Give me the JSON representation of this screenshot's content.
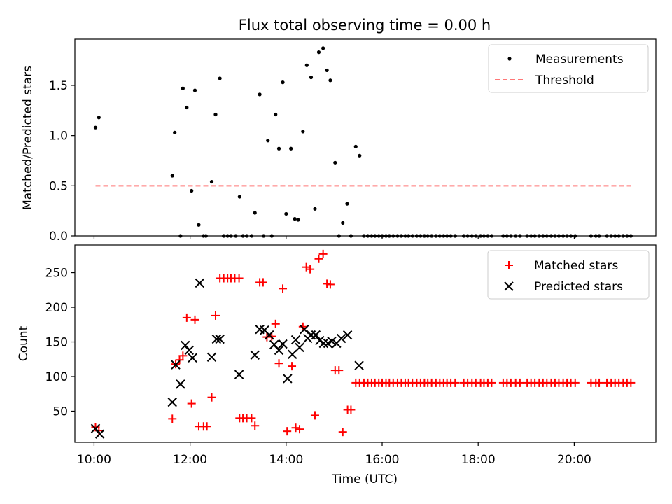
{
  "figure": {
    "title": "Flux total observing time = 0.00 h"
  },
  "chart_data": [
    {
      "type": "scatter",
      "panel": "top",
      "xlabel": "",
      "ylabel": "Matched/Predicted stars",
      "x_axis": "time (hours UTC)",
      "xlim": [
        9.6,
        21.7
      ],
      "ylim": [
        0,
        1.96
      ],
      "yticks": [
        0.0,
        0.5,
        1.0,
        1.5
      ],
      "ytick_labels": [
        "0.0",
        "0.5",
        "1.0",
        "1.5"
      ],
      "grid": false,
      "legend": "upper right",
      "legend_entries": [
        "Measurements",
        "Threshold"
      ],
      "threshold": {
        "name": "Threshold",
        "value": 0.5,
        "x_range": [
          10.03,
          21.18
        ],
        "color": "#ff7777",
        "style": "dashed"
      },
      "series": [
        {
          "name": "Measurements",
          "marker": "dot",
          "color": "#000000",
          "points": [
            [
              10.03,
              1.08
            ],
            [
              10.1,
              1.18
            ],
            [
              11.63,
              0.6
            ],
            [
              11.68,
              1.03
            ],
            [
              11.8,
              0.0
            ],
            [
              11.85,
              1.47
            ],
            [
              11.93,
              1.28
            ],
            [
              12.03,
              0.45
            ],
            [
              12.1,
              1.45
            ],
            [
              12.18,
              0.11
            ],
            [
              12.28,
              0.0
            ],
            [
              12.33,
              0.0
            ],
            [
              12.45,
              0.54
            ],
            [
              12.53,
              1.21
            ],
            [
              12.62,
              1.57
            ],
            [
              12.7,
              0.0
            ],
            [
              12.78,
              0.0
            ],
            [
              12.85,
              0.0
            ],
            [
              12.95,
              0.0
            ],
            [
              13.03,
              0.39
            ],
            [
              13.1,
              0.0
            ],
            [
              13.18,
              0.0
            ],
            [
              13.28,
              0.0
            ],
            [
              13.35,
              0.23
            ],
            [
              13.45,
              1.41
            ],
            [
              13.53,
              0.0
            ],
            [
              13.62,
              0.95
            ],
            [
              13.7,
              0.0
            ],
            [
              13.78,
              1.21
            ],
            [
              13.85,
              0.87
            ],
            [
              13.93,
              1.53
            ],
            [
              14.0,
              0.22
            ],
            [
              14.1,
              0.87
            ],
            [
              14.18,
              0.17
            ],
            [
              14.25,
              0.16
            ],
            [
              14.35,
              1.04
            ],
            [
              14.43,
              1.7
            ],
            [
              14.52,
              1.58
            ],
            [
              14.6,
              0.27
            ],
            [
              14.68,
              1.83
            ],
            [
              14.77,
              1.87
            ],
            [
              14.85,
              1.65
            ],
            [
              14.92,
              1.55
            ],
            [
              15.02,
              0.73
            ],
            [
              15.1,
              0.0
            ],
            [
              15.18,
              0.13
            ],
            [
              15.27,
              0.32
            ],
            [
              15.35,
              0.0
            ],
            [
              15.45,
              0.89
            ],
            [
              15.53,
              0.8
            ],
            [
              15.62,
              0.0
            ],
            [
              15.7,
              0.0
            ],
            [
              15.78,
              0.0
            ],
            [
              15.85,
              0.0
            ],
            [
              15.93,
              0.0
            ],
            [
              16.0,
              0.0
            ],
            [
              16.08,
              0.0
            ],
            [
              16.15,
              0.0
            ],
            [
              16.23,
              0.0
            ],
            [
              16.32,
              0.0
            ],
            [
              16.4,
              0.0
            ],
            [
              16.48,
              0.0
            ],
            [
              16.55,
              0.0
            ],
            [
              16.63,
              0.0
            ],
            [
              16.72,
              0.0
            ],
            [
              16.8,
              0.0
            ],
            [
              16.88,
              0.0
            ],
            [
              16.95,
              0.0
            ],
            [
              17.03,
              0.0
            ],
            [
              17.12,
              0.0
            ],
            [
              17.2,
              0.0
            ],
            [
              17.28,
              0.0
            ],
            [
              17.35,
              0.0
            ],
            [
              17.43,
              0.0
            ],
            [
              17.52,
              0.0
            ],
            [
              17.7,
              0.0
            ],
            [
              17.78,
              0.0
            ],
            [
              17.87,
              0.0
            ],
            [
              17.95,
              0.0
            ],
            [
              18.05,
              0.0
            ],
            [
              18.12,
              0.0
            ],
            [
              18.2,
              0.0
            ],
            [
              18.28,
              0.0
            ],
            [
              18.52,
              0.0
            ],
            [
              18.6,
              0.0
            ],
            [
              18.68,
              0.0
            ],
            [
              18.78,
              0.0
            ],
            [
              18.87,
              0.0
            ],
            [
              19.02,
              0.0
            ],
            [
              19.1,
              0.0
            ],
            [
              19.18,
              0.0
            ],
            [
              19.27,
              0.0
            ],
            [
              19.35,
              0.0
            ],
            [
              19.43,
              0.0
            ],
            [
              19.52,
              0.0
            ],
            [
              19.6,
              0.0
            ],
            [
              19.68,
              0.0
            ],
            [
              19.77,
              0.0
            ],
            [
              19.85,
              0.0
            ],
            [
              19.93,
              0.0
            ],
            [
              20.02,
              0.0
            ],
            [
              20.35,
              0.0
            ],
            [
              20.45,
              0.0
            ],
            [
              20.52,
              0.0
            ],
            [
              20.68,
              0.0
            ],
            [
              20.77,
              0.0
            ],
            [
              20.85,
              0.0
            ],
            [
              20.93,
              0.0
            ],
            [
              21.02,
              0.0
            ],
            [
              21.1,
              0.0
            ],
            [
              21.18,
              0.0
            ]
          ]
        }
      ]
    },
    {
      "type": "scatter",
      "panel": "bottom",
      "xlabel": "Time (UTC)",
      "ylabel": "Count",
      "x_axis": "time (hours UTC)",
      "xlim": [
        9.6,
        21.7
      ],
      "ylim": [
        5,
        290
      ],
      "xticks": [
        10,
        12,
        14,
        16,
        18,
        20
      ],
      "xtick_labels": [
        "10:00",
        "12:00",
        "14:00",
        "16:00",
        "18:00",
        "20:00"
      ],
      "yticks": [
        50,
        100,
        150,
        200,
        250
      ],
      "ytick_labels": [
        "50",
        "100",
        "150",
        "200",
        "250"
      ],
      "grid": false,
      "legend": "upper right",
      "legend_entries": [
        "Matched stars",
        "Predicted stars"
      ],
      "series": [
        {
          "name": "Matched stars",
          "marker": "plus",
          "color": "#ff0000",
          "points": [
            [
              10.03,
              27
            ],
            [
              10.1,
              22
            ],
            [
              11.63,
              39
            ],
            [
              11.7,
              118
            ],
            [
              11.78,
              124
            ],
            [
              11.85,
              130
            ],
            [
              11.93,
              185
            ],
            [
              12.03,
              61
            ],
            [
              12.1,
              182
            ],
            [
              12.18,
              28
            ],
            [
              12.28,
              28
            ],
            [
              12.35,
              28
            ],
            [
              12.45,
              70
            ],
            [
              12.53,
              188
            ],
            [
              12.62,
              242
            ],
            [
              12.7,
              242
            ],
            [
              12.78,
              242
            ],
            [
              12.85,
              242
            ],
            [
              12.93,
              242
            ],
            [
              13.02,
              242
            ],
            [
              13.03,
              40
            ],
            [
              13.1,
              40
            ],
            [
              13.18,
              40
            ],
            [
              13.28,
              40
            ],
            [
              13.35,
              29
            ],
            [
              13.45,
              236
            ],
            [
              13.52,
              236
            ],
            [
              13.6,
              157
            ],
            [
              13.7,
              158
            ],
            [
              13.78,
              176
            ],
            [
              13.85,
              119
            ],
            [
              13.93,
              227
            ],
            [
              14.02,
              21
            ],
            [
              14.12,
              115
            ],
            [
              14.2,
              26
            ],
            [
              14.28,
              24
            ],
            [
              14.35,
              172
            ],
            [
              14.42,
              258
            ],
            [
              14.5,
              255
            ],
            [
              14.6,
              44
            ],
            [
              14.68,
              270
            ],
            [
              14.77,
              277
            ],
            [
              14.85,
              234
            ],
            [
              14.92,
              233
            ],
            [
              15.02,
              109
            ],
            [
              15.1,
              109
            ],
            [
              15.18,
              20
            ],
            [
              15.28,
              52
            ],
            [
              15.35,
              52
            ],
            [
              15.45,
              91
            ],
            [
              15.53,
              91
            ],
            [
              15.62,
              91
            ],
            [
              15.7,
              91
            ],
            [
              15.78,
              91
            ],
            [
              15.85,
              91
            ],
            [
              15.93,
              91
            ],
            [
              16.0,
              91
            ],
            [
              16.08,
              91
            ],
            [
              16.15,
              91
            ],
            [
              16.23,
              91
            ],
            [
              16.32,
              91
            ],
            [
              16.4,
              91
            ],
            [
              16.48,
              91
            ],
            [
              16.55,
              91
            ],
            [
              16.63,
              91
            ],
            [
              16.72,
              91
            ],
            [
              16.8,
              91
            ],
            [
              16.88,
              91
            ],
            [
              16.95,
              91
            ],
            [
              17.03,
              91
            ],
            [
              17.12,
              91
            ],
            [
              17.2,
              91
            ],
            [
              17.28,
              91
            ],
            [
              17.35,
              91
            ],
            [
              17.43,
              91
            ],
            [
              17.52,
              91
            ],
            [
              17.7,
              91
            ],
            [
              17.78,
              91
            ],
            [
              17.87,
              91
            ],
            [
              17.95,
              91
            ],
            [
              18.05,
              91
            ],
            [
              18.12,
              91
            ],
            [
              18.2,
              91
            ],
            [
              18.28,
              91
            ],
            [
              18.52,
              91
            ],
            [
              18.6,
              91
            ],
            [
              18.68,
              91
            ],
            [
              18.78,
              91
            ],
            [
              18.87,
              91
            ],
            [
              19.02,
              91
            ],
            [
              19.1,
              91
            ],
            [
              19.18,
              91
            ],
            [
              19.27,
              91
            ],
            [
              19.35,
              91
            ],
            [
              19.43,
              91
            ],
            [
              19.52,
              91
            ],
            [
              19.6,
              91
            ],
            [
              19.68,
              91
            ],
            [
              19.77,
              91
            ],
            [
              19.85,
              91
            ],
            [
              19.93,
              91
            ],
            [
              20.02,
              91
            ],
            [
              20.35,
              91
            ],
            [
              20.45,
              91
            ],
            [
              20.52,
              91
            ],
            [
              20.68,
              91
            ],
            [
              20.77,
              91
            ],
            [
              20.85,
              91
            ],
            [
              20.93,
              91
            ],
            [
              21.02,
              91
            ],
            [
              21.1,
              91
            ],
            [
              21.18,
              91
            ]
          ]
        },
        {
          "name": "Predicted stars",
          "marker": "x",
          "color": "#000000",
          "points": [
            [
              10.03,
              25
            ],
            [
              10.12,
              17
            ],
            [
              11.63,
              63
            ],
            [
              11.7,
              117
            ],
            [
              11.8,
              89
            ],
            [
              11.9,
              145
            ],
            [
              11.98,
              138
            ],
            [
              12.05,
              127
            ],
            [
              12.2,
              235
            ],
            [
              12.45,
              128
            ],
            [
              12.55,
              154
            ],
            [
              12.62,
              154
            ],
            [
              13.02,
              103
            ],
            [
              13.35,
              131
            ],
            [
              13.45,
              168
            ],
            [
              13.55,
              167
            ],
            [
              13.65,
              160
            ],
            [
              13.75,
              146
            ],
            [
              13.85,
              138
            ],
            [
              13.93,
              147
            ],
            [
              14.03,
              97
            ],
            [
              14.13,
              132
            ],
            [
              14.2,
              153
            ],
            [
              14.28,
              142
            ],
            [
              14.38,
              168
            ],
            [
              14.45,
              155
            ],
            [
              14.52,
              160
            ],
            [
              14.62,
              160
            ],
            [
              14.7,
              152
            ],
            [
              14.78,
              148
            ],
            [
              14.87,
              148
            ],
            [
              14.95,
              151
            ],
            [
              15.05,
              148
            ],
            [
              15.15,
              155
            ],
            [
              15.28,
              160
            ],
            [
              15.52,
              116
            ]
          ]
        }
      ]
    }
  ]
}
